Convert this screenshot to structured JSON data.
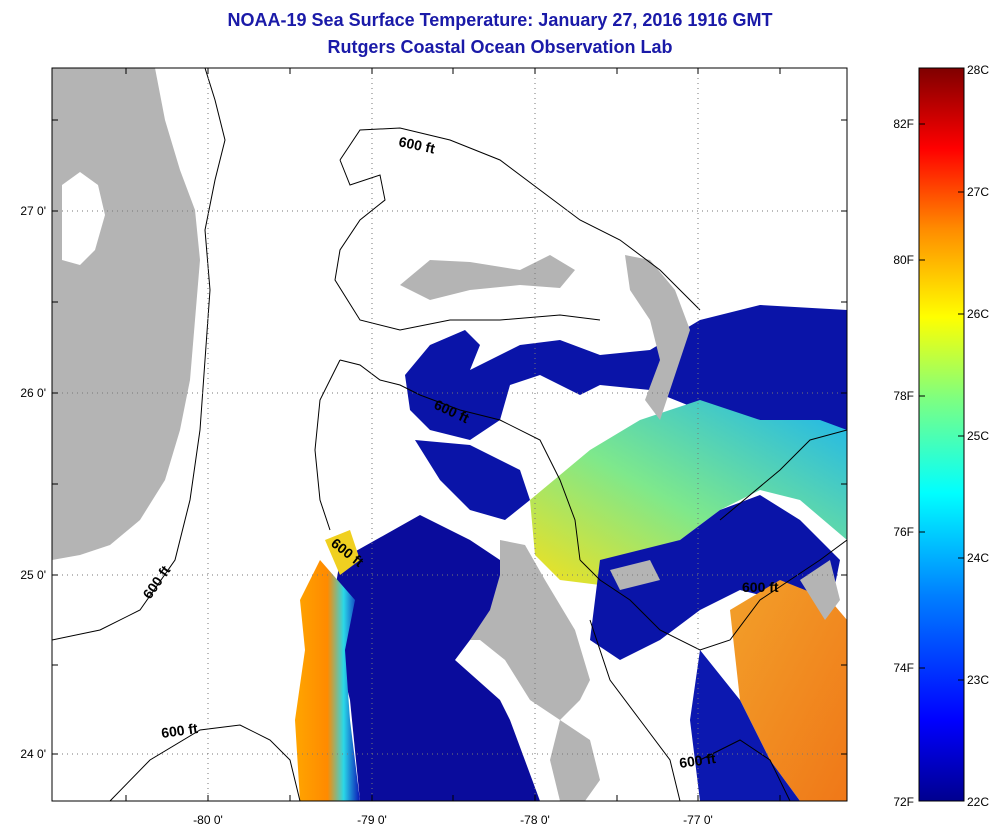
{
  "title": "NOAA-19 Sea Surface Temperature:  January 27, 2016 1916 GMT",
  "subtitle": "Rutgers Coastal Ocean Observation Lab",
  "map": {
    "lat_labels": [
      "27 0'",
      "26 0'",
      "25 0'",
      "24 0'"
    ],
    "lon_labels": [
      "-80 0'",
      "-79 0'",
      "-78 0'",
      "-77 0'"
    ],
    "contour_label": "600 ft",
    "land_color": "#b4b4b4",
    "no_data_color": "#ffffff"
  },
  "colorbar": {
    "celsius_labels": [
      "28C",
      "27C",
      "26C",
      "25C",
      "24C",
      "23C",
      "22C"
    ],
    "fahrenheit_labels": [
      "82F",
      "80F",
      "78F",
      "76F",
      "74F",
      "72F"
    ],
    "colors": [
      "#7f0000",
      "#ff0000",
      "#ff8c00",
      "#ffff00",
      "#7fff7f",
      "#00ffff",
      "#007fff",
      "#0000ff",
      "#00008f"
    ]
  }
}
